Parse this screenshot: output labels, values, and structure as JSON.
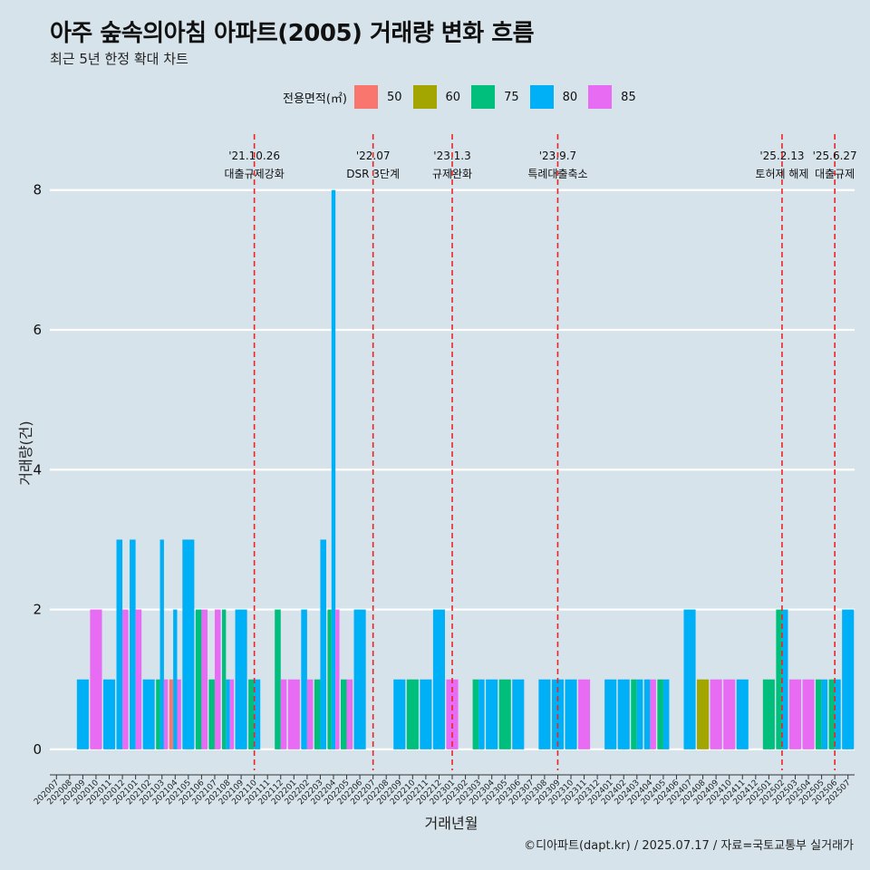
{
  "title": "아주 숲속의아침 아파트(2005) 거래량 변화 흐름",
  "subtitle": "최근 5년 한정 확대 차트",
  "caption": "©디아파트(dapt.kr) / 2025.07.17 / 자료=국토교통부 실거래가",
  "legend": {
    "title": "전용면적(㎡)",
    "items": [
      {
        "label": "50",
        "color": "#f8766d"
      },
      {
        "label": "60",
        "color": "#a3a500"
      },
      {
        "label": "75",
        "color": "#00bf7d"
      },
      {
        "label": "80",
        "color": "#00b0f6"
      },
      {
        "label": "85",
        "color": "#e76bf3"
      }
    ]
  },
  "chart_data": {
    "type": "bar",
    "stacking": "dodge",
    "title": "아주 숲속의아침 아파트(2005) 거래량 변화 흐름",
    "xlabel": "거래년월",
    "ylabel": "거래량(건)",
    "ylim": [
      -0.3,
      8.8
    ],
    "yticks": [
      0,
      2,
      4,
      6,
      8
    ],
    "grid": true,
    "legend_position": "top",
    "categories": [
      "202007",
      "202008",
      "202009",
      "202010",
      "202011",
      "202012",
      "202101",
      "202102",
      "202103",
      "202104",
      "202105",
      "202106",
      "202107",
      "202108",
      "202109",
      "202110",
      "202111",
      "202112",
      "202201",
      "202202",
      "202203",
      "202204",
      "202205",
      "202206",
      "202207",
      "202208",
      "202209",
      "202210",
      "202211",
      "202212",
      "202301",
      "202302",
      "202303",
      "202304",
      "202305",
      "202306",
      "202307",
      "202308",
      "202309",
      "202310",
      "202311",
      "202312",
      "202401",
      "202402",
      "202403",
      "202404",
      "202405",
      "202406",
      "202407",
      "202408",
      "202409",
      "202410",
      "202411",
      "202412",
      "202501",
      "202502",
      "202503",
      "202504",
      "202505",
      "202506",
      "202507"
    ],
    "series": [
      {
        "name": "50",
        "color": "#f8766d",
        "values": [
          0,
          0,
          0,
          0,
          0,
          0,
          0,
          0,
          0,
          1,
          0,
          0,
          0,
          0,
          0,
          0,
          0,
          0,
          0,
          0,
          0,
          0,
          0,
          0,
          0,
          0,
          0,
          0,
          0,
          0,
          0,
          0,
          0,
          0,
          0,
          0,
          0,
          0,
          0,
          0,
          0,
          0,
          0,
          0,
          0,
          0,
          0,
          0,
          0,
          0,
          0,
          0,
          0,
          0,
          0,
          0,
          0,
          0,
          0,
          0,
          0
        ]
      },
      {
        "name": "60",
        "color": "#a3a500",
        "values": [
          0,
          0,
          0,
          0,
          0,
          0,
          0,
          0,
          0,
          0,
          0,
          0,
          0,
          0,
          0,
          0,
          0,
          0,
          0,
          0,
          0,
          0,
          0,
          0,
          0,
          0,
          0,
          0,
          0,
          0,
          0,
          0,
          0,
          0,
          0,
          0,
          0,
          0,
          0,
          0,
          0,
          0,
          0,
          0,
          0,
          0,
          0,
          0,
          0,
          1,
          0,
          0,
          0,
          0,
          0,
          0,
          0,
          0,
          0,
          0,
          0
        ]
      },
      {
        "name": "75",
        "color": "#00bf7d",
        "values": [
          0,
          0,
          0,
          0,
          0,
          0,
          0,
          0,
          1,
          0,
          0,
          2,
          1,
          2,
          0,
          1,
          0,
          2,
          0,
          0,
          1,
          2,
          1,
          0,
          0,
          0,
          0,
          1,
          0,
          0,
          0,
          0,
          1,
          0,
          1,
          0,
          0,
          0,
          0,
          0,
          0,
          0,
          0,
          0,
          1,
          0,
          1,
          0,
          0,
          0,
          0,
          0,
          0,
          0,
          1,
          2,
          0,
          0,
          1,
          1,
          0
        ]
      },
      {
        "name": "80",
        "color": "#00b0f6",
        "values": [
          0,
          0,
          1,
          0,
          1,
          3,
          3,
          1,
          3,
          2,
          3,
          0,
          0,
          1,
          2,
          1,
          0,
          0,
          0,
          2,
          3,
          8,
          0,
          2,
          0,
          0,
          1,
          0,
          1,
          2,
          0,
          0,
          1,
          1,
          0,
          1,
          0,
          1,
          1,
          1,
          0,
          0,
          1,
          1,
          1,
          1,
          1,
          0,
          2,
          0,
          0,
          0,
          1,
          0,
          0,
          2,
          0,
          0,
          1,
          1,
          2
        ]
      },
      {
        "name": "85",
        "color": "#e76bf3",
        "values": [
          0,
          0,
          0,
          2,
          0,
          2,
          2,
          0,
          1,
          1,
          0,
          2,
          2,
          1,
          0,
          0,
          0,
          1,
          1,
          1,
          0,
          2,
          1,
          0,
          0,
          0,
          0,
          0,
          0,
          0,
          1,
          0,
          0,
          0,
          0,
          0,
          0,
          0,
          0,
          0,
          1,
          0,
          0,
          0,
          0,
          1,
          0,
          0,
          0,
          0,
          1,
          1,
          0,
          0,
          0,
          0,
          1,
          1,
          0,
          0,
          0
        ]
      }
    ],
    "annotations": [
      {
        "date": "'21.10.26",
        "label": "대출규제강화",
        "category": "202110"
      },
      {
        "date": "'22.07",
        "label": "DSR 3단계",
        "category": "202207"
      },
      {
        "date": "'23.1.3",
        "label": "규제완화",
        "category": "202301"
      },
      {
        "date": "'23.9.7",
        "label": "특례대출축소",
        "category": "202309"
      },
      {
        "date": "'25.2.13",
        "label": "토허제 해제",
        "category": "202502"
      },
      {
        "date": "'25.6.27",
        "label": "대출규제",
        "category": "202506"
      }
    ]
  }
}
